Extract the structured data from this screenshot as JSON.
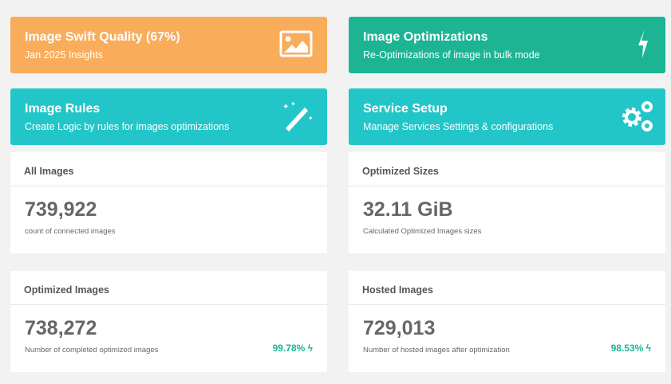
{
  "tiles": [
    {
      "title": "Image Swift Quality (67%)",
      "subtitle": "Jan 2025 Insights",
      "icon": "image-icon",
      "color": "#f9ad5b"
    },
    {
      "title": "Image Optimizations",
      "subtitle": "Re-Optimizations of image in bulk mode",
      "icon": "bolt-icon",
      "color": "#1db494"
    },
    {
      "title": "Image Rules",
      "subtitle": "Create Logic by rules for images optimizations",
      "icon": "magic-wand-icon",
      "color": "#23c6c8"
    },
    {
      "title": "Service Setup",
      "subtitle": "Manage Services Settings & configurations",
      "icon": "gears-icon",
      "color": "#23c6c8"
    }
  ],
  "stats": [
    {
      "header": "All Images",
      "value": "739,922",
      "desc": "count of connected images"
    },
    {
      "header": "Optimized Sizes",
      "value": "32.11 GiB",
      "desc": "Calculated Optimized Images sizes"
    },
    {
      "header": "Optimized Images",
      "value": "738,272",
      "desc": "Number of completed optimized images",
      "percent": "99.78%"
    },
    {
      "header": "Hosted Images",
      "value": "729,013",
      "desc": "Number of hosted images after optimization",
      "percent": "98.53%"
    }
  ]
}
